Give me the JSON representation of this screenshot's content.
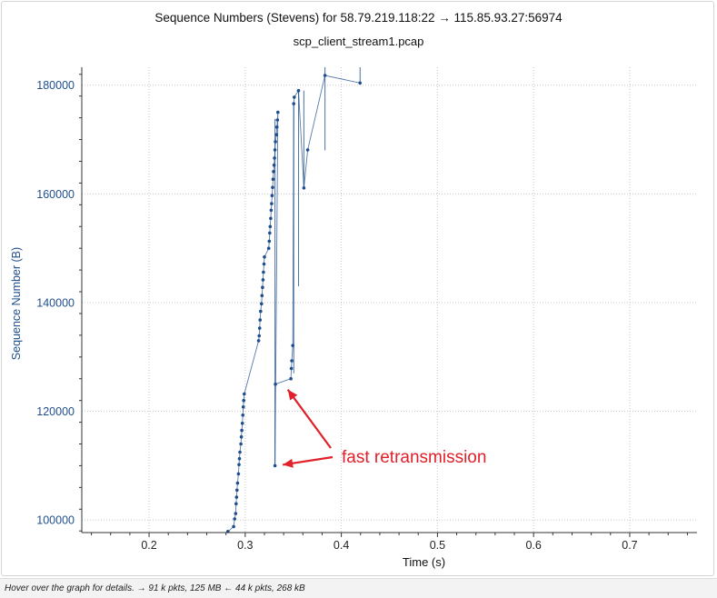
{
  "colors": {
    "accent": "#1f4e8c",
    "annotation": "#e0202a",
    "grid": "#c8c8c8",
    "axis": "#333333",
    "status_bar": "#f3f3f3"
  },
  "chart_data": {
    "type": "scatter",
    "title": "Sequence Numbers (Stevens) for 58.79.219.118:22 → 115.85.93.27:56974",
    "subtitle": "scp_client_stream1.pcap",
    "xlabel": "Time (s)",
    "ylabel": "Sequence Number (B)",
    "xlim": [
      0.13,
      0.77
    ],
    "ylim": [
      97700,
      183300
    ],
    "grid": true,
    "x_ticks": [
      0.2,
      0.3,
      0.4,
      0.5,
      0.6,
      0.7
    ],
    "x_tick_labels": [
      "0.2",
      "0.3",
      "0.4",
      "0.5",
      "0.6",
      "0.7"
    ],
    "y_ticks": [
      100000,
      120000,
      140000,
      160000,
      180000
    ],
    "y_tick_labels": [
      "100000",
      "120000",
      "140000",
      "160000",
      "180000"
    ],
    "series": [
      {
        "points": [
          [
            0.282,
            97900
          ],
          [
            0.288,
            98800
          ],
          [
            0.289,
            100200
          ],
          [
            0.29,
            101200
          ],
          [
            0.2905,
            103000
          ],
          [
            0.291,
            104200
          ],
          [
            0.2915,
            105500
          ],
          [
            0.292,
            106800
          ],
          [
            0.293,
            108500
          ],
          [
            0.2935,
            110200
          ],
          [
            0.294,
            111300
          ],
          [
            0.2945,
            112500
          ],
          [
            0.2955,
            114000
          ],
          [
            0.296,
            115300
          ],
          [
            0.2965,
            116500
          ],
          [
            0.297,
            117800
          ],
          [
            0.2975,
            119300
          ],
          [
            0.298,
            120800
          ],
          [
            0.2985,
            122000
          ],
          [
            0.299,
            123200
          ],
          [
            0.314,
            133000
          ],
          [
            0.3145,
            133900
          ],
          [
            0.315,
            135300
          ],
          [
            0.3155,
            136800
          ],
          [
            0.316,
            138400
          ],
          [
            0.317,
            139800
          ],
          [
            0.3175,
            141300
          ],
          [
            0.318,
            142800
          ],
          [
            0.3185,
            144200
          ],
          [
            0.319,
            145600
          ],
          [
            0.3195,
            147100
          ],
          [
            0.32,
            148400
          ],
          [
            0.3245,
            150000
          ],
          [
            0.325,
            151300
          ],
          [
            0.3255,
            152800
          ],
          [
            0.326,
            154000
          ],
          [
            0.3265,
            155500
          ],
          [
            0.327,
            157000
          ],
          [
            0.3275,
            158200
          ],
          [
            0.328,
            159700
          ],
          [
            0.3285,
            161200
          ],
          [
            0.329,
            162700
          ],
          [
            0.3295,
            164100
          ],
          [
            0.33,
            165300
          ],
          [
            0.3305,
            166600
          ],
          [
            0.331,
            168100
          ],
          [
            0.3315,
            169600
          ],
          [
            0.3325,
            170900
          ],
          [
            0.333,
            172300
          ],
          [
            0.3335,
            173600
          ],
          [
            0.334,
            175000
          ],
          [
            0.331,
            110000
          ],
          [
            0.3315,
            125000
          ],
          [
            0.3475,
            126000
          ],
          [
            0.348,
            127900
          ],
          [
            0.3485,
            129300
          ],
          [
            0.3495,
            132100
          ],
          [
            0.3505,
            176600
          ],
          [
            0.351,
            177800
          ],
          [
            0.3555,
            179000
          ],
          [
            0.361,
            161100
          ],
          [
            0.365,
            168100
          ],
          [
            0.383,
            181800
          ],
          [
            0.4195,
            180400
          ]
        ]
      }
    ],
    "annotations": [
      {
        "text": "fast retransmission",
        "targets": [
          [
            0.3315,
            110000
          ],
          [
            0.3415,
            124500
          ]
        ]
      }
    ]
  },
  "status": {
    "text": "Hover over the graph for details. → 91 k pkts, 125 MB ← 44 k pkts, 268 kB"
  }
}
